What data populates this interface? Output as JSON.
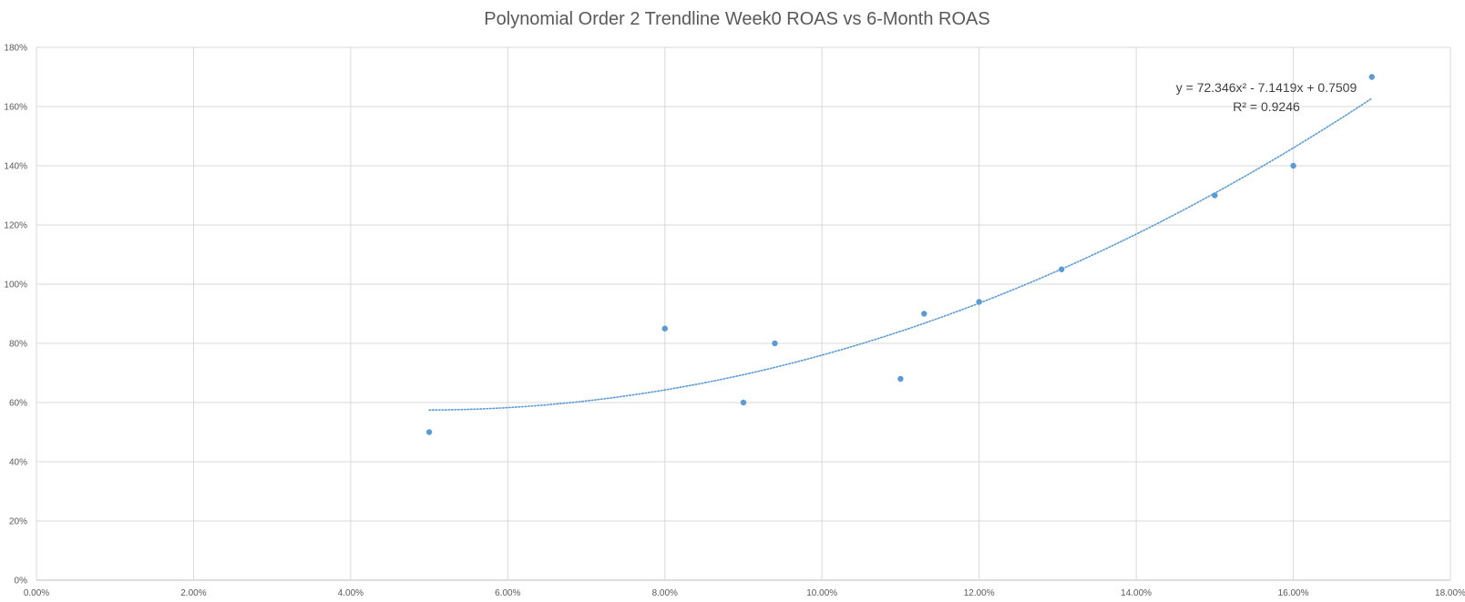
{
  "chart_data": {
    "type": "scatter",
    "title": "Polynomial Order 2 Trendline Week0 ROAS vs 6-Month ROAS",
    "xlabel": "",
    "ylabel": "",
    "xlim": [
      0,
      0.18
    ],
    "ylim": [
      0,
      1.8
    ],
    "x_ticks": [
      "0.00%",
      "2.00%",
      "4.00%",
      "6.00%",
      "8.00%",
      "10.00%",
      "12.00%",
      "14.00%",
      "16.00%",
      "18.00%"
    ],
    "y_ticks": [
      "0%",
      "20%",
      "40%",
      "60%",
      "80%",
      "100%",
      "120%",
      "140%",
      "160%",
      "180%"
    ],
    "grid": true,
    "legend": "none",
    "marker_color": "#5B9BD5",
    "trendline_color": "#5B9BD5",
    "series": [
      {
        "x": [
          0.05,
          0.08,
          0.09,
          0.094,
          0.11,
          0.113,
          0.12,
          0.1305,
          0.15,
          0.16,
          0.17
        ],
        "y": [
          0.5,
          0.85,
          0.6,
          0.8,
          0.68,
          0.9,
          0.94,
          1.05,
          1.3,
          1.4,
          1.7
        ]
      }
    ],
    "trendline": {
      "type": "polynomial",
      "order": 2,
      "coefficients": [
        72.346,
        -7.1419,
        0.7509
      ],
      "x_range": [
        0.05,
        0.17
      ],
      "equation": "y = 72.346x² - 7.1419x + 0.7509",
      "r_squared": "R² = 0.9246"
    }
  }
}
